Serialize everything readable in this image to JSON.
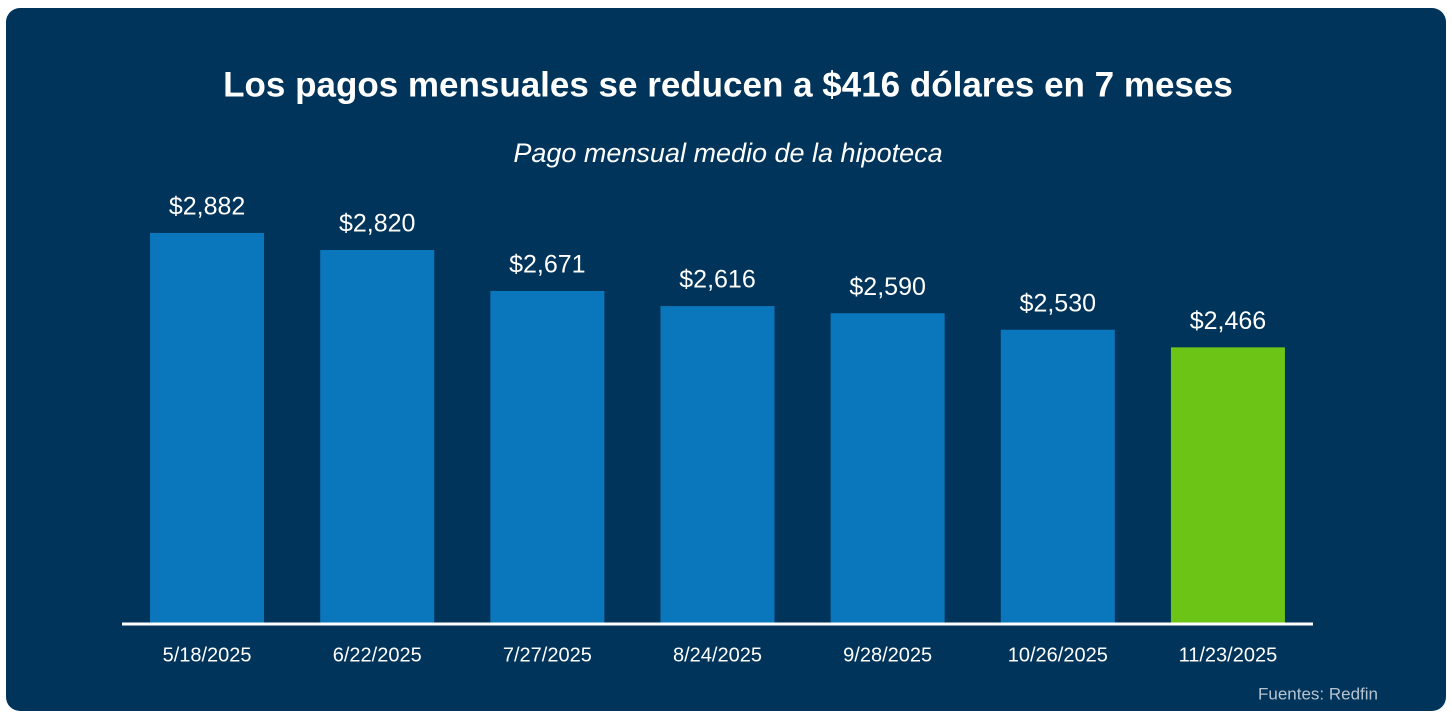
{
  "chart_data": {
    "type": "bar",
    "title": "Los pagos mensuales se reducen a $416 dólares en 7 meses",
    "subtitle": "Pago mensual medio de la hipoteca",
    "categories": [
      "5/18/2025",
      "6/22/2025",
      "7/27/2025",
      "8/24/2025",
      "9/28/2025",
      "10/26/2025",
      "11/23/2025"
    ],
    "values": [
      2882,
      2820,
      2671,
      2616,
      2590,
      2530,
      2466
    ],
    "value_labels": [
      "$2,882",
      "$2,820",
      "$2,671",
      "$2,616",
      "$2,590",
      "$2,530",
      "$2,466"
    ],
    "colors": [
      "#0a77bd",
      "#0a77bd",
      "#0a77bd",
      "#0a77bd",
      "#0a77bd",
      "#0a77bd",
      "#6cc417"
    ],
    "ylim": [
      1460,
      3000
    ],
    "source": "Fuentes: Redfin"
  }
}
